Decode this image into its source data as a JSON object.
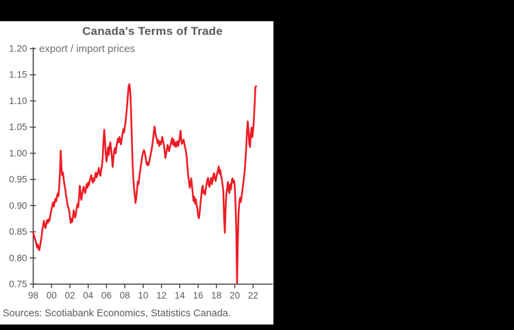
{
  "ui": {
    "canvas_background": "#000000",
    "panel_background": "#ffffff"
  },
  "chart_data": {
    "type": "line",
    "title": "Canada's Terms of Trade",
    "subtitle": "export / import prices",
    "source": "Sources: Scotiabank Economics, Statistics Canada.",
    "xlabel": "",
    "ylabel": "",
    "grid": false,
    "legend": "none",
    "xlim": [
      1998,
      2024
    ],
    "ylim": [
      0.75,
      1.2
    ],
    "y_ticks": [
      0.75,
      0.8,
      0.85,
      0.9,
      0.95,
      1.0,
      1.05,
      1.1,
      1.15,
      1.2
    ],
    "x_ticks": [
      1998,
      2000,
      2002,
      2004,
      2006,
      2008,
      2010,
      2012,
      2014,
      2016,
      2018,
      2020,
      2022
    ],
    "x_tick_labels": [
      "98",
      "00",
      "02",
      "04",
      "06",
      "08",
      "10",
      "12",
      "14",
      "16",
      "18",
      "20",
      "22"
    ],
    "axis_color": "#404040",
    "tick_label_color": "#595959",
    "title_color": "#595959",
    "series": [
      {
        "name": "Canada terms of trade (export / import prices)",
        "color": "#ec1c24",
        "frequency": "monthly",
        "start": "1998-01",
        "end": "2022-05",
        "values": [
          0.848,
          0.843,
          0.838,
          0.833,
          0.827,
          0.82,
          0.826,
          0.817,
          0.815,
          0.823,
          0.833,
          0.842,
          0.855,
          0.862,
          0.871,
          0.861,
          0.857,
          0.864,
          0.872,
          0.867,
          0.874,
          0.87,
          0.878,
          0.886,
          0.893,
          0.901,
          0.906,
          0.898,
          0.907,
          0.913,
          0.908,
          0.917,
          0.923,
          0.918,
          0.936,
          0.962,
          1.005,
          0.972,
          0.958,
          0.963,
          0.949,
          0.939,
          0.931,
          0.919,
          0.911,
          0.901,
          0.897,
          0.891,
          0.879,
          0.867,
          0.875,
          0.869,
          0.878,
          0.891,
          0.883,
          0.877,
          0.886,
          0.896,
          0.903,
          0.897,
          0.916,
          0.938,
          0.924,
          0.911,
          0.92,
          0.929,
          0.936,
          0.93,
          0.924,
          0.933,
          0.941,
          0.934,
          0.944,
          0.939,
          0.948,
          0.953,
          0.958,
          0.949,
          0.944,
          0.952,
          0.947,
          0.957,
          0.963,
          0.954,
          0.959,
          0.965,
          0.972,
          0.961,
          0.957,
          0.968,
          0.976,
          0.991,
          1.021,
          1.045,
          1.024,
          0.999,
          0.984,
          0.996,
          1.011,
          0.997,
          1.014,
          1.021,
          1.007,
          0.994,
          0.974,
          0.989,
          1.005,
          1.01,
          1.0,
          1.013,
          1.021,
          1.028,
          1.021,
          1.031,
          1.024,
          1.017,
          1.028,
          1.036,
          1.046,
          1.04,
          1.051,
          1.061,
          1.076,
          1.091,
          1.111,
          1.128,
          1.132,
          1.119,
          1.088,
          1.038,
          0.988,
          0.953,
          0.934,
          0.919,
          0.905,
          0.916,
          0.931,
          0.946,
          0.941,
          0.956,
          0.966,
          0.976,
          0.986,
          0.996,
          1.001,
          1.006,
          1.002,
          0.994,
          0.985,
          0.978,
          0.982,
          0.977,
          0.985,
          0.992,
          0.999,
          1.006,
          1.016,
          1.026,
          1.041,
          1.051,
          1.039,
          1.031,
          1.027,
          1.019,
          1.025,
          1.014,
          1.022,
          1.017,
          1.022,
          1.031,
          1.024,
          1.017,
          1.007,
          0.991,
          0.998,
          1.006,
          1.016,
          1.01,
          1.004,
          1.012,
          1.016,
          1.023,
          1.029,
          1.017,
          1.026,
          1.014,
          1.021,
          1.012,
          1.019,
          1.023,
          1.014,
          1.021,
          1.031,
          1.043,
          1.024,
          1.018,
          1.023,
          1.026,
          1.018,
          1.011,
          1.004,
          0.994,
          0.974,
          0.957,
          0.947,
          0.934,
          0.942,
          0.952,
          0.937,
          0.924,
          0.909,
          0.917,
          0.904,
          0.912,
          0.901,
          0.894,
          0.881,
          0.876,
          0.886,
          0.903,
          0.916,
          0.931,
          0.938,
          0.924,
          0.928,
          0.921,
          0.932,
          0.941,
          0.948,
          0.953,
          0.939,
          0.936,
          0.946,
          0.953,
          0.941,
          0.948,
          0.958,
          0.962,
          0.951,
          0.947,
          0.955,
          0.962,
          0.968,
          0.975,
          0.961,
          0.968,
          0.957,
          0.951,
          0.94,
          0.929,
          0.878,
          0.848,
          0.893,
          0.923,
          0.932,
          0.945,
          0.929,
          0.924,
          0.941,
          0.931,
          0.946,
          0.952,
          0.944,
          0.948,
          0.937,
          0.904,
          0.856,
          0.752,
          0.829,
          0.886,
          0.906,
          0.915,
          0.907,
          0.918,
          0.929,
          0.941,
          0.953,
          0.966,
          0.986,
          1.011,
          1.041,
          1.061,
          1.044,
          1.019,
          1.012,
          1.036,
          1.049,
          1.031,
          1.043,
          1.062,
          1.092,
          1.126,
          1.128
        ]
      }
    ]
  }
}
